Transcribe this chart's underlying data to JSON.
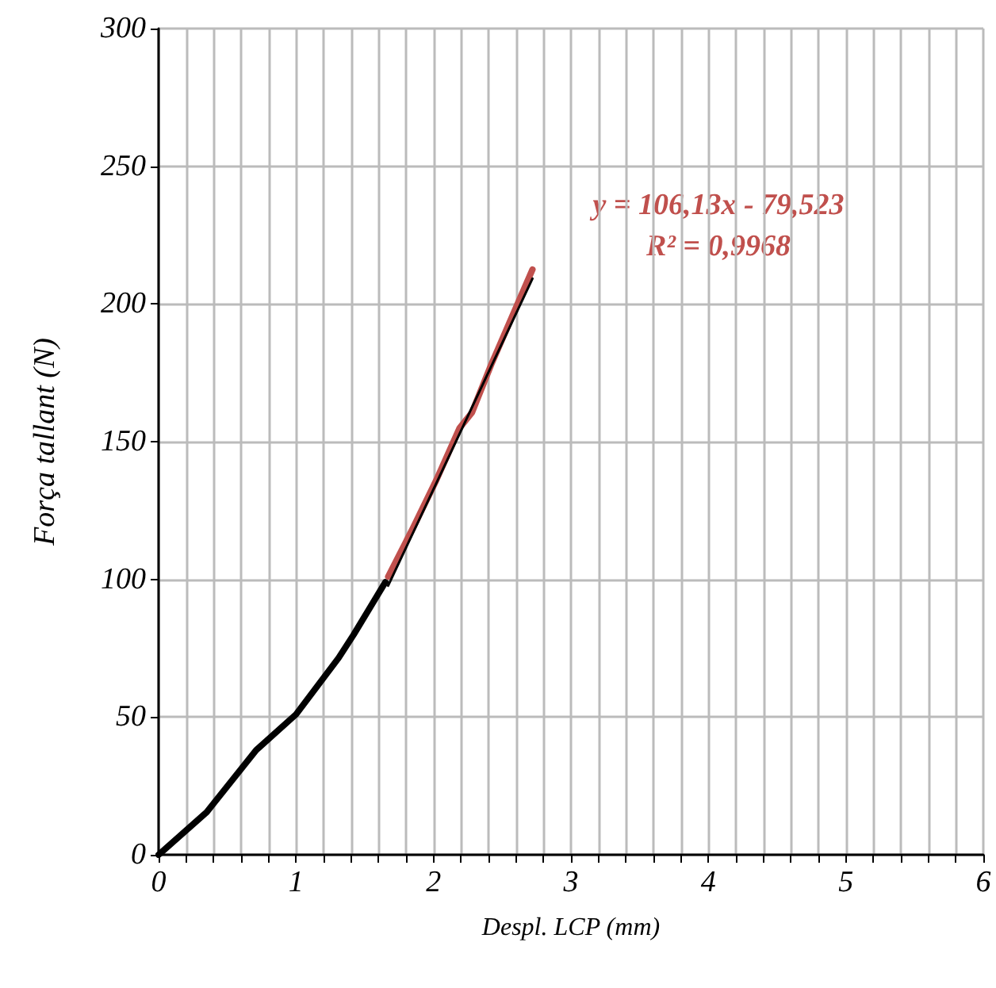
{
  "chart_data": {
    "type": "line",
    "xlabel": "Despl. LCP (mm)",
    "ylabel": "Força tallant (N)",
    "series": [
      {
        "color": "#000000",
        "x": [
          0,
          0.35,
          0.71,
          1.0,
          1.31,
          1.42,
          1.65
        ],
        "values": [
          0,
          15.5,
          38,
          51,
          71.5,
          80,
          99
        ]
      },
      {
        "color": "#c0504d",
        "x": [
          1.67,
          1.85,
          2.02,
          2.19,
          2.28,
          2.42,
          2.62,
          2.72
        ],
        "values": [
          101,
          118.6,
          136,
          155,
          160.6,
          178,
          201,
          212.5
        ]
      },
      {
        "color": "#000000",
        "x": [
          1.67,
          2.72
        ],
        "values": [
          97.7,
          209.2
        ]
      }
    ],
    "annotations": [
      "y = 106,13x - 79,523",
      "R² = 0,9968"
    ],
    "xlim": [
      0,
      6
    ],
    "ylim": [
      0,
      300
    ],
    "xticks": [
      0,
      {
        "value": 0.2,
        "label": null
      },
      {
        "value": 0.4,
        "label": null
      },
      {
        "value": 0.6,
        "label": null
      },
      {
        "value": 0.8,
        "label": null
      },
      1,
      {
        "value": 1.2,
        "label": null
      },
      {
        "value": 1.4,
        "label": null
      },
      {
        "value": 1.6,
        "label": null
      },
      {
        "value": 1.8,
        "label": null
      },
      2,
      {
        "value": 2.2,
        "label": null
      },
      {
        "value": 2.4,
        "label": null
      },
      {
        "value": 2.6,
        "label": null
      },
      {
        "value": 2.8,
        "label": null
      },
      3,
      {
        "value": 3.2,
        "label": null
      },
      {
        "value": 3.4,
        "label": null
      },
      {
        "value": 3.6,
        "label": null
      },
      {
        "value": 3.8,
        "label": null
      },
      4,
      {
        "value": 4.2,
        "label": null
      },
      {
        "value": 4.4,
        "label": null
      },
      {
        "value": 4.6,
        "label": null
      },
      {
        "value": 4.8,
        "label": null
      },
      5,
      {
        "value": 5.2,
        "label": null
      },
      {
        "value": 5.4,
        "label": null
      },
      {
        "value": 5.6,
        "label": null
      },
      {
        "value": 5.8,
        "label": null
      },
      6
    ],
    "yticks": [
      0,
      50,
      100,
      150,
      200,
      250,
      300
    ],
    "grid": true,
    "marker": "none",
    "line_style": "solid"
  }
}
